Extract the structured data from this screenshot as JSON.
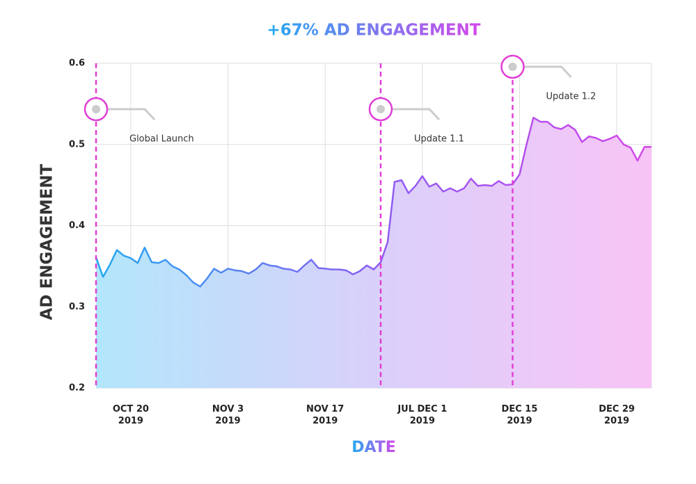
{
  "chart_data": {
    "type": "area",
    "title": "+67% AD ENGAGEMENT",
    "x_label": "DATE",
    "y_label": "AD ENGAGEMENT",
    "categories": [
      null,
      null,
      null,
      null,
      null,
      "OCT 20\n2019",
      null,
      null,
      null,
      null,
      null,
      null,
      null,
      null,
      null,
      null,
      null,
      null,
      null,
      "NOV 3\n2019",
      null,
      null,
      null,
      null,
      null,
      null,
      null,
      null,
      null,
      null,
      null,
      null,
      null,
      "NOV 17\n2019",
      null,
      null,
      null,
      null,
      null,
      null,
      null,
      null,
      null,
      null,
      null,
      null,
      null,
      "JUL DEC 1\n2019",
      null,
      null,
      null,
      null,
      null,
      null,
      null,
      null,
      null,
      null,
      null,
      null,
      null,
      "DEC 15\n2019",
      null,
      null,
      null,
      null,
      null,
      null,
      null,
      null,
      null,
      null,
      null,
      null,
      null,
      "DEC 29\n2019",
      null,
      null,
      null,
      null,
      null
    ],
    "values": [
      0.361,
      0.337,
      0.352,
      0.37,
      0.363,
      0.36,
      0.354,
      0.373,
      0.355,
      0.354,
      0.358,
      0.35,
      0.346,
      0.339,
      0.33,
      0.325,
      0.335,
      0.347,
      0.342,
      0.347,
      0.345,
      0.344,
      0.341,
      0.346,
      0.354,
      0.351,
      0.35,
      0.347,
      0.346,
      0.343,
      0.351,
      0.358,
      0.348,
      0.347,
      0.346,
      0.346,
      0.345,
      0.34,
      0.344,
      0.351,
      0.346,
      0.355,
      0.38,
      0.454,
      0.456,
      0.44,
      0.449,
      0.461,
      0.448,
      0.452,
      0.442,
      0.446,
      0.442,
      0.446,
      0.458,
      0.449,
      0.45,
      0.449,
      0.455,
      0.45,
      0.451,
      0.463,
      0.5,
      0.533,
      0.528,
      0.528,
      0.521,
      0.519,
      0.524,
      0.518,
      0.503,
      0.51,
      0.508,
      0.504,
      0.507,
      0.511,
      0.5,
      0.496,
      0.48,
      0.497,
      0.497
    ],
    "ylim": [
      0.2,
      0.6
    ],
    "yticks": [
      0.2,
      0.3,
      0.4,
      0.5,
      0.6
    ],
    "grid": true,
    "line_colors": [
      "#22aaf2",
      "#8b5cf3",
      "#d447ea"
    ],
    "fill_colors": [
      "#b2e6fb",
      "#d9d0fa",
      "#f8c4f6"
    ],
    "event_color": "#e03fd6",
    "annotations": [
      {
        "text": "Global Launch",
        "at": 0
      },
      {
        "text": "Update 1.1",
        "at": 41
      },
      {
        "text": "Update 1.2",
        "at": 60
      }
    ]
  }
}
